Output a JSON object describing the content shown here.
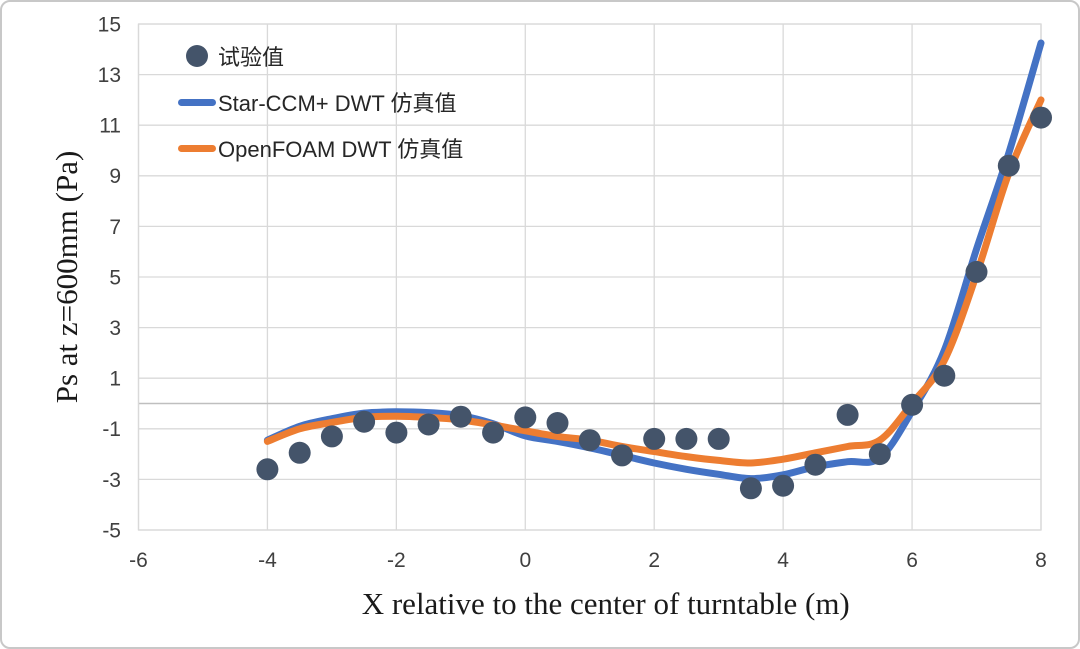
{
  "frame": {
    "background": "#FFFFFF",
    "border_color": "#C8C8C8"
  },
  "chart_data": {
    "type": "scatter",
    "title": "",
    "xlabel": "X relative to the center of turntable (m)",
    "ylabel": "Ps at z=600mm (Pa)",
    "xlim": [
      -6,
      8
    ],
    "ylim": [
      -5,
      15
    ],
    "x_ticks": [
      -6,
      -4,
      -2,
      0,
      2,
      4,
      6,
      8
    ],
    "y_ticks": [
      15,
      13,
      11,
      9,
      7,
      5,
      3,
      1,
      -1,
      -3,
      -5
    ],
    "grid": true,
    "legend_position": "top-left-inside",
    "colors": {
      "gridline": "#D9D9D9",
      "zero_line": "#BFBFBF",
      "plot_border": "#D9D9D9",
      "tick_text": "#404040",
      "scatter": "#44546A",
      "line_blue": "#4472C4",
      "line_orange": "#ED7D31"
    },
    "x": [
      -4,
      -3.5,
      -3,
      -2.5,
      -2,
      -1.5,
      -1,
      -0.5,
      0,
      0.5,
      1,
      1.5,
      2,
      2.5,
      3,
      3.5,
      4,
      4.5,
      5,
      5.5,
      6,
      6.5,
      7,
      7.5,
      8
    ],
    "series": [
      {
        "name": "试验值",
        "type": "scatter",
        "color": "#44546A",
        "values": [
          -2.6,
          -1.95,
          -1.3,
          -0.72,
          -1.15,
          -0.83,
          -0.52,
          -1.15,
          -0.55,
          -0.77,
          -1.45,
          -2.05,
          -1.4,
          -1.4,
          -1.4,
          -3.35,
          -3.25,
          -2.42,
          -0.45,
          -2.0,
          -0.05,
          1.1,
          5.2,
          9.4,
          11.3
        ]
      },
      {
        "name": "Star-CCM+ DWT 仿真值",
        "type": "line",
        "color": "#4472C4",
        "values": [
          -1.45,
          -0.9,
          -0.6,
          -0.38,
          -0.33,
          -0.36,
          -0.48,
          -0.8,
          -1.28,
          -1.5,
          -1.75,
          -2.05,
          -2.35,
          -2.6,
          -2.8,
          -2.97,
          -2.82,
          -2.5,
          -2.3,
          -2.15,
          -0.3,
          2.1,
          6.1,
          9.9,
          14.25
        ]
      },
      {
        "name": "OpenFOAM DWT 仿真值",
        "type": "line",
        "color": "#ED7D31",
        "values": [
          -1.5,
          -1.0,
          -0.75,
          -0.55,
          -0.5,
          -0.55,
          -0.65,
          -0.85,
          -1.08,
          -1.3,
          -1.45,
          -1.7,
          -1.9,
          -2.1,
          -2.25,
          -2.35,
          -2.2,
          -1.95,
          -1.7,
          -1.45,
          0.0,
          1.7,
          5.1,
          9.1,
          12.0
        ]
      }
    ]
  }
}
